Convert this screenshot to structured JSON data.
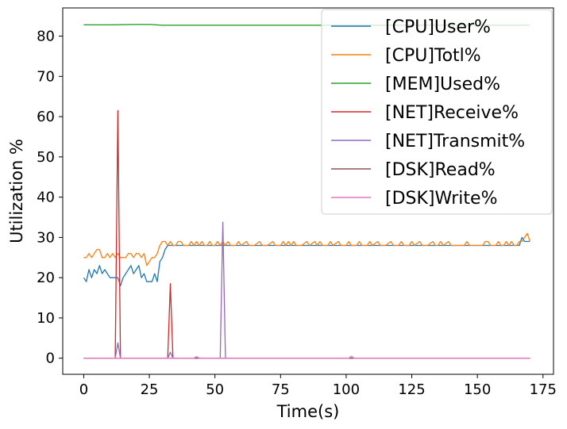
{
  "chart_data": {
    "type": "line",
    "xlabel": "Time(s)",
    "ylabel": "Utilization %",
    "xlim": [
      -8,
      179
    ],
    "ylim": [
      -4,
      87
    ],
    "xticks": [
      0,
      25,
      50,
      75,
      100,
      125,
      150,
      175
    ],
    "yticks": [
      0,
      10,
      20,
      30,
      40,
      50,
      60,
      70,
      80
    ],
    "legend_position": "top-right",
    "grid": false,
    "series": [
      {
        "name": "[CPU]User%",
        "color": "#1f77b4",
        "points": [
          [
            0,
            20
          ],
          [
            1,
            19
          ],
          [
            2,
            22
          ],
          [
            3,
            20
          ],
          [
            4,
            22
          ],
          [
            5,
            21
          ],
          [
            6,
            23
          ],
          [
            7,
            21
          ],
          [
            8,
            22
          ],
          [
            9,
            21
          ],
          [
            10,
            20
          ],
          [
            11,
            20
          ],
          [
            12,
            20
          ],
          [
            13,
            20
          ],
          [
            14,
            18
          ],
          [
            15,
            20
          ],
          [
            16,
            21
          ],
          [
            17,
            22
          ],
          [
            18,
            23
          ],
          [
            19,
            21
          ],
          [
            20,
            22
          ],
          [
            21,
            23
          ],
          [
            22,
            20
          ],
          [
            23,
            21
          ],
          [
            24,
            19
          ],
          [
            25,
            19
          ],
          [
            26,
            19
          ],
          [
            27,
            21
          ],
          [
            28,
            19
          ],
          [
            29,
            24
          ],
          [
            30,
            25
          ],
          [
            31,
            27
          ],
          [
            32,
            28
          ],
          [
            33,
            28
          ],
          [
            35,
            28
          ],
          [
            38,
            28
          ],
          [
            40,
            28
          ],
          [
            45,
            28
          ],
          [
            50,
            28
          ],
          [
            55,
            28
          ],
          [
            60,
            28
          ],
          [
            65,
            28
          ],
          [
            70,
            28
          ],
          [
            75,
            28
          ],
          [
            80,
            28
          ],
          [
            85,
            28
          ],
          [
            90,
            28
          ],
          [
            95,
            28
          ],
          [
            100,
            28
          ],
          [
            105,
            28
          ],
          [
            110,
            28
          ],
          [
            115,
            28
          ],
          [
            120,
            28
          ],
          [
            125,
            28
          ],
          [
            130,
            28
          ],
          [
            135,
            28
          ],
          [
            140,
            28
          ],
          [
            145,
            28
          ],
          [
            150,
            28
          ],
          [
            155,
            28
          ],
          [
            160,
            28
          ],
          [
            165,
            28
          ],
          [
            166,
            28
          ],
          [
            167,
            30
          ],
          [
            168,
            29
          ],
          [
            169,
            29
          ],
          [
            170,
            29
          ]
        ]
      },
      {
        "name": "[CPU]Totl%",
        "color": "#ff7f0e",
        "points": [
          [
            0,
            25
          ],
          [
            1,
            25
          ],
          [
            2,
            26
          ],
          [
            3,
            25
          ],
          [
            4,
            26
          ],
          [
            5,
            27
          ],
          [
            6,
            27
          ],
          [
            7,
            25
          ],
          [
            8,
            25
          ],
          [
            9,
            26
          ],
          [
            10,
            25
          ],
          [
            11,
            26
          ],
          [
            12,
            25
          ],
          [
            13,
            26
          ],
          [
            14,
            25
          ],
          [
            15,
            25
          ],
          [
            16,
            25
          ],
          [
            17,
            26
          ],
          [
            18,
            26
          ],
          [
            19,
            25
          ],
          [
            20,
            26
          ],
          [
            21,
            26
          ],
          [
            22,
            25
          ],
          [
            23,
            26
          ],
          [
            24,
            23
          ],
          [
            25,
            24
          ],
          [
            26,
            25
          ],
          [
            27,
            25
          ],
          [
            28,
            26
          ],
          [
            29,
            28
          ],
          [
            30,
            29
          ],
          [
            31,
            29
          ],
          [
            32,
            28
          ],
          [
            33,
            29
          ],
          [
            34,
            28
          ],
          [
            35,
            28
          ],
          [
            36,
            29
          ],
          [
            37,
            29
          ],
          [
            38,
            28
          ],
          [
            39,
            28
          ],
          [
            40,
            28
          ],
          [
            41,
            29
          ],
          [
            42,
            28
          ],
          [
            43,
            29
          ],
          [
            44,
            28
          ],
          [
            45,
            29
          ],
          [
            46,
            28
          ],
          [
            47,
            28
          ],
          [
            48,
            29
          ],
          [
            49,
            28
          ],
          [
            50,
            28
          ],
          [
            51,
            29
          ],
          [
            52,
            28
          ],
          [
            53,
            29
          ],
          [
            54,
            28
          ],
          [
            55,
            29
          ],
          [
            56,
            28
          ],
          [
            58,
            28
          ],
          [
            59,
            29
          ],
          [
            60,
            28
          ],
          [
            62,
            29
          ],
          [
            63,
            28
          ],
          [
            65,
            28
          ],
          [
            67,
            29
          ],
          [
            68,
            28
          ],
          [
            70,
            28
          ],
          [
            72,
            29
          ],
          [
            73,
            28
          ],
          [
            75,
            28
          ],
          [
            76,
            29
          ],
          [
            77,
            28
          ],
          [
            78,
            29
          ],
          [
            79,
            28
          ],
          [
            80,
            29
          ],
          [
            81,
            28
          ],
          [
            83,
            28
          ],
          [
            85,
            29
          ],
          [
            86,
            28
          ],
          [
            88,
            29
          ],
          [
            89,
            28
          ],
          [
            90,
            29
          ],
          [
            91,
            28
          ],
          [
            93,
            28
          ],
          [
            94,
            29
          ],
          [
            95,
            28
          ],
          [
            97,
            29
          ],
          [
            98,
            28
          ],
          [
            100,
            28
          ],
          [
            101,
            29
          ],
          [
            102,
            28
          ],
          [
            104,
            28
          ],
          [
            105,
            29
          ],
          [
            106,
            28
          ],
          [
            108,
            28
          ],
          [
            109,
            29
          ],
          [
            110,
            28
          ],
          [
            112,
            29
          ],
          [
            113,
            28
          ],
          [
            115,
            28
          ],
          [
            117,
            29
          ],
          [
            118,
            28
          ],
          [
            120,
            28
          ],
          [
            121,
            29
          ],
          [
            122,
            28
          ],
          [
            124,
            28
          ],
          [
            125,
            29
          ],
          [
            126,
            28
          ],
          [
            128,
            29
          ],
          [
            129,
            28
          ],
          [
            131,
            28
          ],
          [
            133,
            29
          ],
          [
            134,
            28
          ],
          [
            135,
            28
          ],
          [
            136,
            29
          ],
          [
            137,
            28
          ],
          [
            139,
            29
          ],
          [
            140,
            28
          ],
          [
            142,
            28
          ],
          [
            145,
            28
          ],
          [
            146,
            29
          ],
          [
            147,
            28
          ],
          [
            149,
            28
          ],
          [
            150,
            28
          ],
          [
            152,
            28
          ],
          [
            153,
            29
          ],
          [
            154,
            29
          ],
          [
            155,
            28
          ],
          [
            157,
            28
          ],
          [
            158,
            29
          ],
          [
            159,
            28
          ],
          [
            160,
            28
          ],
          [
            161,
            29
          ],
          [
            162,
            28
          ],
          [
            163,
            29
          ],
          [
            164,
            28
          ],
          [
            165,
            28
          ],
          [
            166,
            29
          ],
          [
            167,
            29
          ],
          [
            168,
            30
          ],
          [
            169,
            31
          ],
          [
            170,
            29
          ]
        ]
      },
      {
        "name": "[MEM]Used%",
        "color": "#2ca02c",
        "points": [
          [
            0,
            82.8
          ],
          [
            10,
            82.8
          ],
          [
            20,
            82.9
          ],
          [
            25,
            82.9
          ],
          [
            30,
            82.7
          ],
          [
            60,
            82.7
          ],
          [
            100,
            82.7
          ],
          [
            140,
            82.7
          ],
          [
            170,
            82.7
          ]
        ]
      },
      {
        "name": "[NET]Receive%",
        "color": "#d62728",
        "points": [
          [
            0,
            0
          ],
          [
            12,
            0
          ],
          [
            13,
            61.5
          ],
          [
            14,
            0
          ],
          [
            32,
            0
          ],
          [
            33,
            18.5
          ],
          [
            34,
            0
          ],
          [
            170,
            0
          ]
        ]
      },
      {
        "name": "[NET]Transmit%",
        "color": "#9467bd",
        "points": [
          [
            0,
            0
          ],
          [
            12,
            0
          ],
          [
            13,
            3.8
          ],
          [
            14,
            0
          ],
          [
            32,
            0
          ],
          [
            33,
            1.5
          ],
          [
            34,
            0
          ],
          [
            52,
            0
          ],
          [
            53,
            33.8
          ],
          [
            54,
            0
          ],
          [
            170,
            0
          ]
        ]
      },
      {
        "name": "[DSK]Read%",
        "color": "#8c564b",
        "points": [
          [
            0,
            0
          ],
          [
            170,
            0
          ]
        ]
      },
      {
        "name": "[DSK]Write%",
        "color": "#e377c2",
        "points": [
          [
            0,
            0
          ],
          [
            42,
            0
          ],
          [
            43,
            0.4
          ],
          [
            44,
            0
          ],
          [
            101,
            0
          ],
          [
            102,
            0.5
          ],
          [
            103,
            0
          ],
          [
            170,
            0
          ]
        ]
      }
    ]
  }
}
